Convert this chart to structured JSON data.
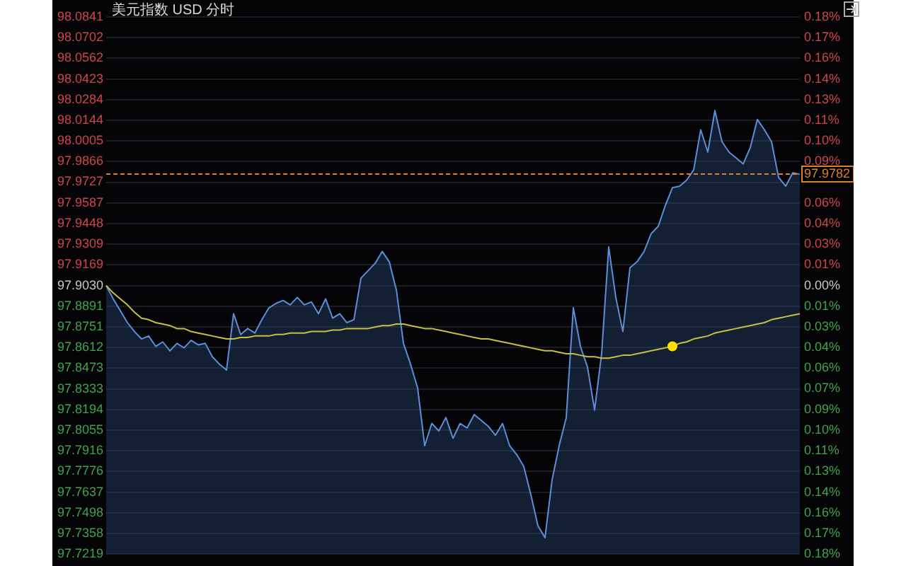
{
  "chart_data": {
    "type": "area",
    "title": "美元指数 USD 分时",
    "categories": [
      null,
      null,
      null,
      null,
      null,
      null,
      null,
      null,
      null,
      null,
      null,
      null,
      null,
      null,
      null,
      null,
      null,
      null,
      null,
      null,
      null,
      null,
      null,
      null,
      null,
      null,
      null,
      null,
      null,
      null,
      null,
      null,
      null,
      null,
      null,
      null,
      null,
      null,
      null,
      null,
      null,
      null,
      null,
      null,
      null,
      null,
      null,
      null,
      null,
      null,
      null,
      null,
      null,
      null,
      null,
      null,
      null,
      null,
      null,
      null,
      null,
      null,
      null,
      null,
      null,
      null,
      null,
      null,
      null,
      null,
      null,
      null,
      null,
      null,
      null,
      null,
      null,
      null,
      null,
      null,
      null,
      null,
      null,
      null,
      null,
      null,
      null,
      null,
      null,
      null,
      null,
      null,
      null,
      null,
      null,
      null,
      null,
      null,
      null
    ],
    "series": [
      {
        "color": "#5b8fd9",
        "values": [
          97.903,
          97.894,
          97.886,
          97.878,
          97.872,
          97.867,
          97.869,
          97.862,
          97.865,
          97.859,
          97.864,
          97.861,
          97.866,
          97.863,
          97.864,
          97.855,
          97.85,
          97.846,
          97.884,
          97.87,
          97.874,
          97.871,
          97.88,
          97.888,
          97.891,
          97.893,
          97.89,
          97.895,
          97.89,
          97.892,
          97.884,
          97.894,
          97.881,
          97.884,
          97.878,
          97.88,
          97.908,
          97.913,
          97.918,
          97.926,
          97.919,
          97.9,
          97.864,
          97.85,
          97.834,
          97.795,
          97.81,
          97.805,
          97.814,
          97.8,
          97.81,
          97.807,
          97.816,
          97.812,
          97.808,
          97.802,
          97.81,
          97.795,
          97.789,
          97.781,
          97.762,
          97.741,
          97.733,
          97.772,
          97.795,
          97.814,
          97.888,
          97.862,
          97.848,
          97.819,
          97.857,
          97.929,
          97.895,
          97.872,
          97.915,
          97.919,
          97.926,
          97.938,
          97.943,
          97.957,
          97.969,
          97.97,
          97.974,
          97.981,
          98.008,
          97.993,
          98.021,
          98,
          97.993,
          97.989,
          97.985,
          97.996,
          98.015,
          98.008,
          98,
          97.976,
          97.97,
          97.979,
          97.978
        ]
      },
      {
        "type": "line",
        "color": "#c8c040",
        "values": [
          97.903,
          97.898,
          97.894,
          97.89,
          97.885,
          97.881,
          97.88,
          97.878,
          97.877,
          97.876,
          97.874,
          97.874,
          97.872,
          97.871,
          97.87,
          97.869,
          97.868,
          97.867,
          97.867,
          97.868,
          97.868,
          97.869,
          97.869,
          97.869,
          97.87,
          97.87,
          97.871,
          97.871,
          97.871,
          97.872,
          97.872,
          97.872,
          97.873,
          97.873,
          97.874,
          97.874,
          97.874,
          97.874,
          97.875,
          97.876,
          97.876,
          97.877,
          97.877,
          97.876,
          97.875,
          97.874,
          97.874,
          97.873,
          97.872,
          97.871,
          97.87,
          97.869,
          97.868,
          97.867,
          97.867,
          97.866,
          97.865,
          97.864,
          97.863,
          97.862,
          97.861,
          97.86,
          97.859,
          97.859,
          97.858,
          97.857,
          97.857,
          97.856,
          97.855,
          97.855,
          97.854,
          97.854,
          97.855,
          97.856,
          97.856,
          97.857,
          97.858,
          97.859,
          97.86,
          97.861,
          97.862,
          97.864,
          97.865,
          97.867,
          97.868,
          97.869,
          97.871,
          97.872,
          97.873,
          97.874,
          97.875,
          97.876,
          97.877,
          97.878,
          97.88,
          97.881,
          97.882,
          97.883,
          97.884
        ]
      },
      {
        "type": "scatter",
        "color": "#ffe000",
        "values": [
          null,
          null,
          null,
          null,
          null,
          null,
          null,
          null,
          null,
          null,
          null,
          null,
          null,
          null,
          null,
          null,
          null,
          null,
          null,
          null,
          null,
          null,
          null,
          null,
          null,
          null,
          null,
          null,
          null,
          null,
          null,
          null,
          null,
          null,
          null,
          null,
          null,
          null,
          null,
          null,
          null,
          null,
          null,
          null,
          null,
          null,
          null,
          null,
          null,
          null,
          null,
          null,
          null,
          null,
          null,
          null,
          null,
          null,
          null,
          null,
          null,
          null,
          null,
          null,
          null,
          null,
          null,
          null,
          null,
          null,
          null,
          null,
          null,
          null,
          null,
          null,
          null,
          null,
          null,
          null,
          97.862,
          null,
          null,
          null,
          null,
          null,
          null,
          null,
          null,
          null,
          null,
          null,
          null,
          null,
          null,
          null,
          null,
          null,
          null
        ]
      }
    ],
    "ylim": [
      97.7219,
      98.0841
    ],
    "yticks": [
      97.7219,
      97.7358,
      97.7498,
      97.7637,
      97.7776,
      97.7916,
      97.8055,
      97.8194,
      97.8333,
      97.8473,
      97.8612,
      97.8751,
      97.8891,
      {
        "value": 97.903,
        "label": "97.9030"
      },
      97.9169,
      97.9309,
      97.9448,
      97.9587,
      97.9727,
      97.9866,
      98.0005,
      98.0144,
      98.0284,
      98.0423,
      98.0562,
      98.0702,
      98.0841
    ],
    "y2lim": [
      -0.185,
      0.185
    ],
    "y2ticks": [
      {
        "value": -0.185,
        "label": "0.18%"
      },
      {
        "value": -0.1707,
        "label": "0.17%"
      },
      {
        "value": -0.1565,
        "label": "0.16%"
      },
      {
        "value": -0.1423,
        "label": "0.14%"
      },
      {
        "value": -0.1281,
        "label": "0.13%"
      },
      {
        "value": -0.1138,
        "label": "0.11%"
      },
      {
        "value": -0.0996,
        "label": "0.10%"
      },
      {
        "value": -0.0854,
        "label": "0.09%"
      },
      {
        "value": -0.0711,
        "label": "0.07%"
      },
      {
        "value": -0.0569,
        "label": "0.06%"
      },
      {
        "value": -0.0427,
        "label": "0.04%"
      },
      {
        "value": -0.0285,
        "label": "0.03%"
      },
      {
        "value": -0.0142,
        "label": "0.01%"
      },
      {
        "value": 0,
        "label": "0.00%"
      },
      {
        "value": 0.0142,
        "label": "0.01%"
      },
      {
        "value": 0.0285,
        "label": "0.03%"
      },
      {
        "value": 0.0427,
        "label": "0.04%"
      },
      {
        "value": 0.0569,
        "label": "0.06%"
      },
      {
        "value": 0.0711,
        "label": null
      },
      {
        "value": 0.0854,
        "label": "0.09%"
      },
      {
        "value": 0.0996,
        "label": "0.10%"
      },
      {
        "value": 0.1138,
        "label": "0.11%"
      },
      {
        "value": 0.1281,
        "label": "0.13%"
      },
      {
        "value": 0.1423,
        "label": "0.14%"
      },
      {
        "value": 0.1565,
        "label": "0.16%"
      },
      {
        "value": 0.1707,
        "label": "0.17%"
      },
      {
        "value": 0.185,
        "label": "0.18%"
      }
    ],
    "ref_lines": [
      {
        "axis": "y",
        "value": 97.9782,
        "label": "97.9782",
        "color": "#d9822b",
        "line_style": "dashed"
      }
    ],
    "grid": "y",
    "legend": false
  }
}
